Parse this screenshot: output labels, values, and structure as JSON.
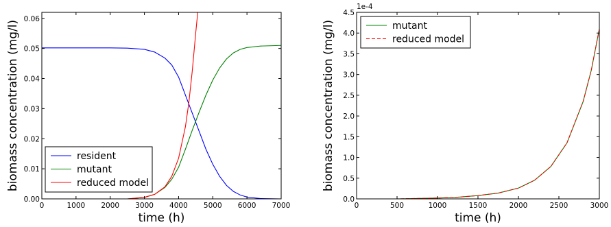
{
  "chart_data": [
    {
      "type": "line",
      "xlabel": "time (h)",
      "ylabel": "biomass concentration (mg/l)",
      "xlim": [
        0,
        7000
      ],
      "ylim": [
        0,
        0.062
      ],
      "xticks": [
        0,
        1000,
        2000,
        3000,
        4000,
        5000,
        6000,
        7000
      ],
      "yticks": [
        0.0,
        0.01,
        0.02,
        0.03,
        0.04,
        0.05,
        0.06
      ],
      "ytick_labels": [
        "0.00",
        "0.01",
        "0.02",
        "0.03",
        "0.04",
        "0.05",
        "0.06"
      ],
      "grid": false,
      "legend_position": "lower-left",
      "legend": [
        "resident",
        "mutant",
        "reduced model"
      ],
      "series": [
        {
          "name": "resident",
          "color": "#0000ff",
          "style": "solid",
          "points": [
            [
              0,
              0.0502
            ],
            [
              1000,
              0.0502
            ],
            [
              2000,
              0.0502
            ],
            [
              2500,
              0.0501
            ],
            [
              3000,
              0.0497
            ],
            [
              3300,
              0.0488
            ],
            [
              3600,
              0.0468
            ],
            [
              3800,
              0.0445
            ],
            [
              4000,
              0.0405
            ],
            [
              4200,
              0.0345
            ],
            [
              4400,
              0.0285
            ],
            [
              4600,
              0.0225
            ],
            [
              4800,
              0.0165
            ],
            [
              5000,
              0.0115
            ],
            [
              5200,
              0.0075
            ],
            [
              5400,
              0.0045
            ],
            [
              5600,
              0.0025
            ],
            [
              5800,
              0.0013
            ],
            [
              6000,
              0.0006
            ],
            [
              6400,
              0.0001
            ],
            [
              7000,
              0.0
            ]
          ]
        },
        {
          "name": "mutant",
          "color": "#008000",
          "style": "solid",
          "points": [
            [
              0,
              0.0
            ],
            [
              2500,
              0.0
            ],
            [
              3000,
              0.0005
            ],
            [
              3300,
              0.0015
            ],
            [
              3600,
              0.0038
            ],
            [
              3800,
              0.0065
            ],
            [
              4000,
              0.0105
            ],
            [
              4200,
              0.0165
            ],
            [
              4400,
              0.0228
            ],
            [
              4600,
              0.0288
            ],
            [
              4800,
              0.0345
            ],
            [
              5000,
              0.0395
            ],
            [
              5200,
              0.0435
            ],
            [
              5400,
              0.0465
            ],
            [
              5600,
              0.0485
            ],
            [
              5800,
              0.0497
            ],
            [
              6000,
              0.0503
            ],
            [
              6400,
              0.0508
            ],
            [
              7000,
              0.051
            ]
          ]
        },
        {
          "name": "reduced model",
          "color": "#ff0000",
          "style": "solid",
          "points": [
            [
              0,
              0.0
            ],
            [
              2500,
              0.0
            ],
            [
              3000,
              0.0005
            ],
            [
              3300,
              0.0015
            ],
            [
              3600,
              0.004
            ],
            [
              3800,
              0.0075
            ],
            [
              4000,
              0.0135
            ],
            [
              4200,
              0.024
            ],
            [
              4300,
              0.032
            ],
            [
              4400,
              0.0425
            ],
            [
              4500,
              0.055
            ],
            [
              4560,
              0.062
            ]
          ]
        }
      ]
    },
    {
      "type": "line",
      "xlabel": "time (h)",
      "ylabel": "biomass concentration (mg/l)",
      "xlim": [
        0,
        3000
      ],
      "ylim": [
        0,
        4.5
      ],
      "y_scale_label": "1e-4",
      "xticks": [
        0,
        500,
        1000,
        1500,
        2000,
        2500,
        3000
      ],
      "yticks": [
        0,
        0.5,
        1.0,
        1.5,
        2.0,
        2.5,
        3.0,
        3.5,
        4.0,
        4.5
      ],
      "ytick_labels": [
        "0.0",
        "0.5",
        "1.0",
        "1.5",
        "2.0",
        "2.5",
        "3.0",
        "3.5",
        "4.0",
        "4.5"
      ],
      "grid": false,
      "legend_position": "top-left",
      "legend": [
        "mutant",
        "reduced model"
      ],
      "series": [
        {
          "name": "mutant",
          "color": "#008000",
          "style": "solid",
          "points": [
            [
              0,
              0.0
            ],
            [
              500,
              0.0
            ],
            [
              1000,
              0.02
            ],
            [
              1250,
              0.04
            ],
            [
              1500,
              0.08
            ],
            [
              1750,
              0.14
            ],
            [
              2000,
              0.26
            ],
            [
              2200,
              0.45
            ],
            [
              2400,
              0.78
            ],
            [
              2600,
              1.35
            ],
            [
              2800,
              2.35
            ],
            [
              2900,
              3.1
            ],
            [
              3000,
              4.1
            ]
          ]
        },
        {
          "name": "reduced model",
          "color": "#ff0000",
          "style": "dashed",
          "points": [
            [
              0,
              0.0
            ],
            [
              500,
              0.0
            ],
            [
              1000,
              0.02
            ],
            [
              1250,
              0.04
            ],
            [
              1500,
              0.08
            ],
            [
              1750,
              0.14
            ],
            [
              2000,
              0.26
            ],
            [
              2200,
              0.45
            ],
            [
              2400,
              0.78
            ],
            [
              2600,
              1.35
            ],
            [
              2800,
              2.35
            ],
            [
              2900,
              3.1
            ],
            [
              3000,
              4.1
            ]
          ]
        }
      ]
    }
  ]
}
